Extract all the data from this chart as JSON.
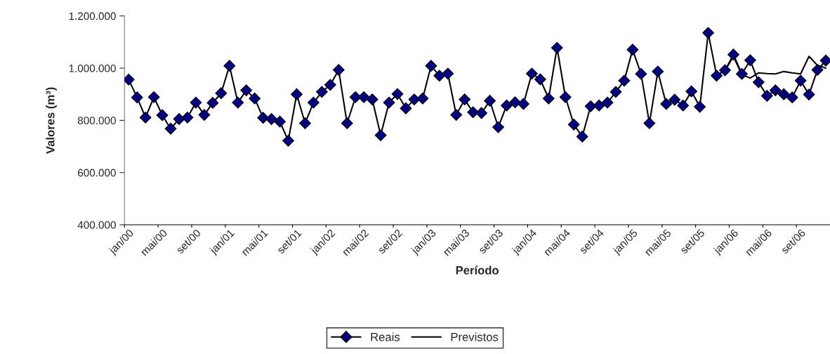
{
  "chart_data": {
    "type": "line",
    "xlabel": "Período",
    "ylabel": "Valores (m³)",
    "categories": [
      "jan/00",
      null,
      null,
      null,
      "mai/00",
      null,
      null,
      null,
      "set/00",
      null,
      null,
      null,
      "jan/01",
      null,
      null,
      null,
      "mai/01",
      null,
      null,
      null,
      "set/01",
      null,
      null,
      null,
      "jan/02",
      null,
      null,
      null,
      "mai/02",
      null,
      null,
      null,
      "set/02",
      null,
      null,
      null,
      "jan/03",
      null,
      null,
      null,
      "mai/03",
      null,
      null,
      null,
      "set/03",
      null,
      null,
      null,
      "jan/04",
      null,
      null,
      null,
      "mai/04",
      null,
      null,
      null,
      "set/04",
      null,
      null,
      null,
      "jan/05",
      null,
      null,
      null,
      "mai/05",
      null,
      null,
      null,
      "set/05",
      null,
      null,
      null,
      "jan/06",
      null,
      null,
      null,
      "mai/06",
      null,
      null,
      null,
      "set/06",
      null,
      null,
      null
    ],
    "series": [
      {
        "name": "Reais",
        "color": "#000080",
        "marker": "diamond",
        "values": [
          956000,
          888000,
          811000,
          889000,
          820000,
          768000,
          805000,
          811000,
          868000,
          821000,
          867000,
          904000,
          1009000,
          868000,
          915000,
          884000,
          810000,
          805000,
          795000,
          722000,
          900000,
          789000,
          868000,
          909000,
          936000,
          993000,
          789000,
          889000,
          889000,
          880000,
          743000,
          868000,
          901000,
          846000,
          880000,
          884000,
          1009000,
          971000,
          979000,
          821000,
          880000,
          831000,
          828000,
          875000,
          774000,
          857000,
          869000,
          863000,
          979000,
          957000,
          884000,
          1078000,
          889000,
          784000,
          738000,
          854000,
          857000,
          868000,
          909000,
          952000,
          1071000,
          978000,
          789000,
          987000,
          863000,
          879000,
          857000,
          911000,
          852000,
          1135000,
          971000,
          992000,
          1052000,
          978000,
          1030000,
          946000,
          894000,
          915000,
          900000,
          888000,
          952000,
          899000,
          993000,
          1029000
        ]
      },
      {
        "name": "Previstos",
        "color": "#000000",
        "marker": "none",
        "values": [
          null,
          null,
          null,
          null,
          null,
          null,
          null,
          null,
          null,
          null,
          null,
          null,
          null,
          null,
          null,
          null,
          null,
          null,
          null,
          null,
          null,
          null,
          null,
          null,
          null,
          null,
          null,
          null,
          null,
          null,
          null,
          null,
          null,
          null,
          null,
          null,
          null,
          null,
          null,
          null,
          null,
          null,
          null,
          null,
          null,
          null,
          null,
          null,
          null,
          null,
          null,
          null,
          null,
          null,
          null,
          null,
          null,
          null,
          null,
          null,
          null,
          null,
          null,
          null,
          null,
          null,
          null,
          null,
          null,
          null,
          null,
          990000,
          1045000,
          975000,
          962000,
          982000,
          979000,
          978000,
          987000,
          982000,
          978000,
          1045000,
          1011000,
          1000000
        ]
      }
    ],
    "ylim": [
      400000,
      1200000
    ],
    "yticks": [
      {
        "value": 400000,
        "label": "400.000"
      },
      {
        "value": 600000,
        "label": "600.000"
      },
      {
        "value": 800000,
        "label": "800.000"
      },
      {
        "value": 1000000,
        "label": "1.000.000"
      },
      {
        "value": 1200000,
        "label": "1.200.000"
      }
    ],
    "grid": false,
    "legend": "bottom",
    "line_style": "solid"
  }
}
